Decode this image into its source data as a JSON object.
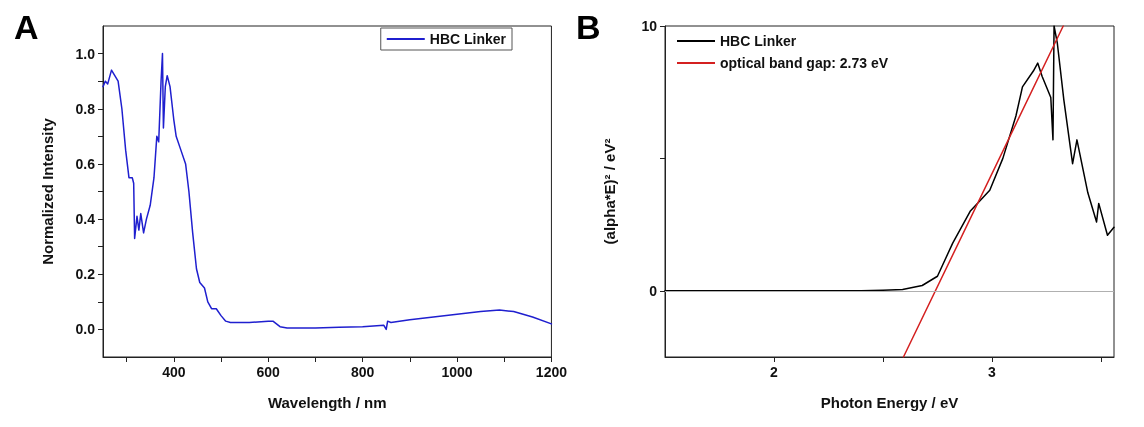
{
  "chart_data": [
    {
      "type": "line",
      "annotations": [
        "A"
      ],
      "xlabel": "Wavelength / nm",
      "ylabel": "Normalized Intensity",
      "xlim": [
        250,
        1200
      ],
      "ylim": [
        -0.1,
        1.1
      ],
      "xticks": [
        {
          "value": 300,
          "label": null
        },
        400,
        {
          "value": 500,
          "label": null
        },
        600,
        {
          "value": 700,
          "label": null
        },
        800,
        {
          "value": 900,
          "label": null
        },
        1000,
        {
          "value": 1100,
          "label": null
        },
        1200
      ],
      "yticks": [
        {
          "value": 0,
          "label": "0.0"
        },
        {
          "value": 0.1,
          "label": null
        },
        0.2,
        {
          "value": 0.3,
          "label": null
        },
        0.4,
        {
          "value": 0.5,
          "label": null
        },
        0.6,
        {
          "value": 0.7,
          "label": null
        },
        0.8,
        {
          "value": 0.9,
          "label": null
        },
        {
          "value": 1,
          "label": "1.0"
        }
      ],
      "grid": false,
      "legend": "top right",
      "marker": "none",
      "line_style": "solid",
      "series": [
        {
          "name": "HBC Linker",
          "color": "#1f1fcf",
          "x": [
            250,
            255,
            260,
            268,
            275,
            282,
            290,
            298,
            305,
            312,
            315,
            317,
            322,
            326,
            330,
            336,
            342,
            350,
            358,
            364,
            368,
            373,
            376,
            378,
            382,
            386,
            392,
            400,
            405,
            415,
            425,
            432,
            440,
            448,
            455,
            465,
            472,
            480,
            490,
            500,
            510,
            520,
            560,
            600,
            610,
            625,
            640,
            700,
            750,
            800,
            845,
            850,
            853,
            860,
            900,
            950,
            1000,
            1050,
            1090,
            1120,
            1160,
            1200
          ],
          "values": [
            0.88,
            0.9,
            0.89,
            0.94,
            0.92,
            0.9,
            0.8,
            0.65,
            0.55,
            0.55,
            0.53,
            0.33,
            0.41,
            0.36,
            0.42,
            0.35,
            0.4,
            0.45,
            0.55,
            0.7,
            0.68,
            0.9,
            1.0,
            0.73,
            0.88,
            0.92,
            0.88,
            0.76,
            0.7,
            0.65,
            0.6,
            0.5,
            0.35,
            0.22,
            0.17,
            0.15,
            0.1,
            0.075,
            0.075,
            0.05,
            0.03,
            0.025,
            0.025,
            0.03,
            0.03,
            0.01,
            0.005,
            0.005,
            0.008,
            0.01,
            0.015,
            0.0,
            0.03,
            0.025,
            0.035,
            0.045,
            0.055,
            0.065,
            0.07,
            0.065,
            0.045,
            0.02
          ]
        }
      ]
    },
    {
      "type": "line",
      "annotations": [
        "B"
      ],
      "xlabel": "Photon Energy / eV",
      "ylabel": "(alpha*E)² / eV²",
      "xlim": [
        1.5,
        3.56
      ],
      "ylim": [
        -2.5,
        10
      ],
      "xticks": [
        2,
        {
          "value": 2.5,
          "label": null
        },
        3,
        {
          "value": 3.5,
          "label": null
        }
      ],
      "yticks": [
        0,
        {
          "value": 5,
          "label": null
        },
        10
      ],
      "grid": false,
      "legend": "top left",
      "marker": "none",
      "line_style": "solid",
      "ref_lines": [
        {
          "axis": "y",
          "value": 0,
          "label": null,
          "color": "#b0b0b0"
        }
      ],
      "series": [
        {
          "name": "HBC Linker",
          "color": "#000000",
          "x": [
            1.5,
            2.0,
            2.4,
            2.5,
            2.59,
            2.68,
            2.75,
            2.82,
            2.9,
            2.99,
            3.05,
            3.11,
            3.14,
            3.19,
            3.21,
            3.23,
            3.27,
            3.28,
            3.285,
            3.3,
            3.33,
            3.36,
            3.37,
            3.39,
            3.44,
            3.48,
            3.49,
            3.53,
            3.56
          ],
          "values": [
            0,
            0,
            0,
            0.02,
            0.05,
            0.2,
            0.55,
            1.8,
            3.0,
            3.8,
            5.0,
            6.6,
            7.7,
            8.3,
            8.6,
            8.1,
            7.3,
            5.7,
            10,
            9.35,
            7.2,
            5.4,
            4.8,
            5.7,
            3.7,
            2.6,
            3.3,
            2.1,
            2.4
          ]
        },
        {
          "name": "optical band gap: 2.73 eV",
          "color": "#d42020",
          "x": [
            2.594,
            3.327
          ],
          "values": [
            -2.5,
            10
          ]
        }
      ]
    }
  ]
}
